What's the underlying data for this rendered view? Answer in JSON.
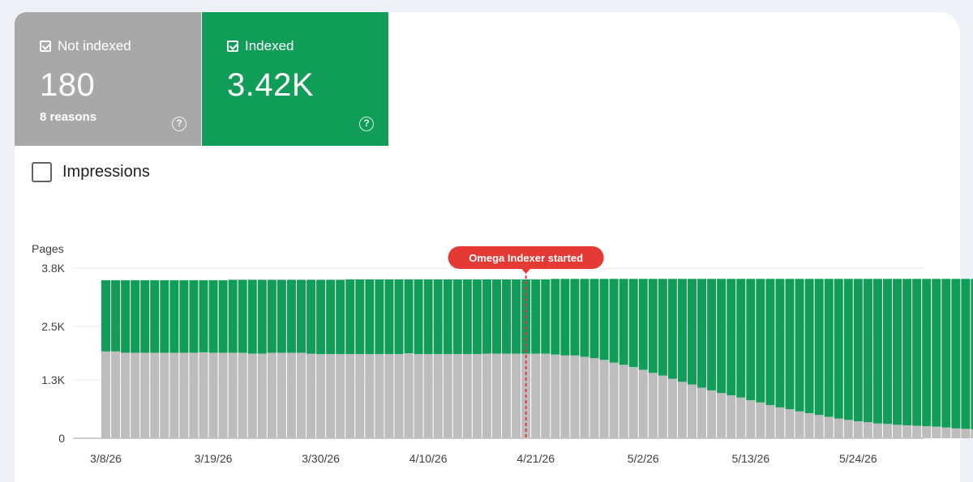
{
  "cards": [
    {
      "label": "Not indexed",
      "value": "180",
      "sub": "8 reasons",
      "color": "#a8a8a8",
      "checked": true
    },
    {
      "label": "Indexed",
      "value": "3.42K",
      "sub": "",
      "color": "#109d58",
      "checked": true
    }
  ],
  "help_symbol": "?",
  "impressions": {
    "label": "Impressions",
    "checked": false
  },
  "colors": {
    "indexed": "#109d58",
    "not_indexed": "#bdbdbd",
    "annotation": "#e53935",
    "grid": "#e8eaed"
  },
  "chart_data": {
    "type": "bar",
    "stacked": true,
    "ylabel": "Pages",
    "ylim": [
      0,
      3800
    ],
    "yticks": [
      0,
      1300,
      2500,
      3800
    ],
    "ytick_labels": [
      "0",
      "1.3K",
      "2.5K",
      "3.8K"
    ],
    "x_start": "3/8/26",
    "x_end": "5/27/26",
    "xtick_labels": [
      "3/8/26",
      "3/19/26",
      "3/30/26",
      "4/10/26",
      "4/21/26",
      "5/2/26",
      "5/13/26",
      "5/24/26"
    ],
    "annotation": {
      "label": "Omega Indexer started",
      "date": "4/20/26"
    },
    "series": [
      {
        "name": "Not indexed",
        "color": "#bdbdbd",
        "values": [
          1940,
          1940,
          1910,
          1910,
          1910,
          1910,
          1910,
          1910,
          1910,
          1910,
          1920,
          1910,
          1910,
          1910,
          1910,
          1890,
          1890,
          1910,
          1910,
          1910,
          1910,
          1890,
          1880,
          1880,
          1880,
          1880,
          1880,
          1880,
          1880,
          1880,
          1880,
          1900,
          1880,
          1880,
          1880,
          1880,
          1880,
          1880,
          1880,
          1890,
          1890,
          1890,
          1890,
          1890,
          1890,
          1890,
          1870,
          1850,
          1850,
          1820,
          1790,
          1750,
          1690,
          1640,
          1590,
          1530,
          1460,
          1400,
          1330,
          1260,
          1200,
          1130,
          1070,
          1010,
          960,
          910,
          850,
          800,
          740,
          690,
          650,
          600,
          560,
          520,
          480,
          440,
          410,
          380,
          360,
          330,
          320,
          300,
          290,
          280,
          270,
          260,
          240,
          220,
          210,
          200,
          190,
          180
        ]
      },
      {
        "name": "Indexed",
        "color": "#109d58",
        "values": [
          1590,
          1590,
          1620,
          1620,
          1620,
          1620,
          1620,
          1620,
          1620,
          1620,
          1610,
          1620,
          1620,
          1630,
          1630,
          1650,
          1650,
          1630,
          1630,
          1630,
          1630,
          1650,
          1660,
          1660,
          1660,
          1670,
          1670,
          1670,
          1670,
          1670,
          1670,
          1650,
          1670,
          1670,
          1670,
          1670,
          1670,
          1670,
          1670,
          1660,
          1660,
          1660,
          1660,
          1660,
          1660,
          1660,
          1690,
          1710,
          1710,
          1740,
          1770,
          1810,
          1870,
          1920,
          1970,
          2030,
          2100,
          2160,
          2230,
          2300,
          2360,
          2430,
          2490,
          2550,
          2600,
          2650,
          2710,
          2760,
          2820,
          2870,
          2910,
          2960,
          3000,
          3040,
          3080,
          3120,
          3150,
          3180,
          3200,
          3230,
          3240,
          3260,
          3270,
          3280,
          3290,
          3300,
          3320,
          3340,
          3350,
          3360,
          3370,
          3420
        ]
      }
    ]
  }
}
